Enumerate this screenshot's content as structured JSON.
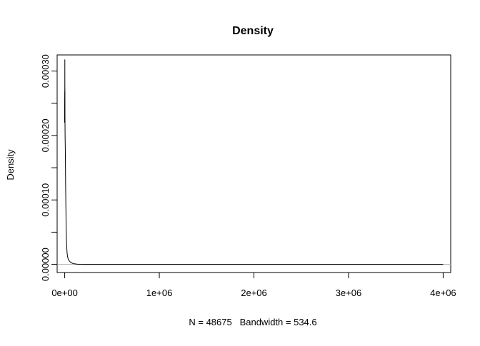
{
  "chart_data": {
    "type": "line",
    "title": "Density",
    "xlabel": "N = 48675   Bandwidth = 534.6",
    "ylabel": "Density",
    "xlim": [
      -80000,
      4080000
    ],
    "ylim": [
      -1.26e-05,
      0.000325
    ],
    "x_ticks": [
      0,
      1000000,
      2000000,
      3000000,
      4000000
    ],
    "x_tick_labels": [
      "0e+00",
      "1e+06",
      "2e+06",
      "3e+06",
      "4e+06"
    ],
    "y_ticks": [
      0,
      5e-05,
      0.0001,
      0.00015,
      0.0002,
      0.00025,
      0.0003
    ],
    "y_tick_labels": [
      "0.00000",
      "",
      "0.00010",
      "",
      "0.00020",
      "",
      "0.00030"
    ],
    "zero_line": true,
    "grid": false,
    "series": [
      {
        "color": "#000000",
        "x": [
          -1600,
          0,
          400,
          800,
          1000,
          1400,
          1800,
          2200,
          2800,
          3200,
          4000,
          6000,
          8000,
          10000,
          12000,
          15000,
          20000,
          25000,
          30000,
          40000,
          60000,
          80000,
          100000,
          130000,
          160000,
          200000,
          400000,
          1000000,
          2000000,
          3000000,
          4000000
        ],
        "y": [
          0.00022,
          0.000268,
          0.00022,
          0.00027,
          0.000225,
          0.000318,
          0.00026,
          0.000275,
          0.00023,
          0.000215,
          0.0002,
          0.00018,
          0.00015,
          0.00012,
          9.5e-05,
          6e-05,
          3e-05,
          1.8e-05,
          1.2e-05,
          7e-06,
          3.5e-06,
          1.8e-06,
          9e-07,
          4e-07,
          1e-07,
          5e-08,
          2e-08,
          1e-08,
          5e-09,
          2e-09,
          0
        ]
      }
    ]
  }
}
